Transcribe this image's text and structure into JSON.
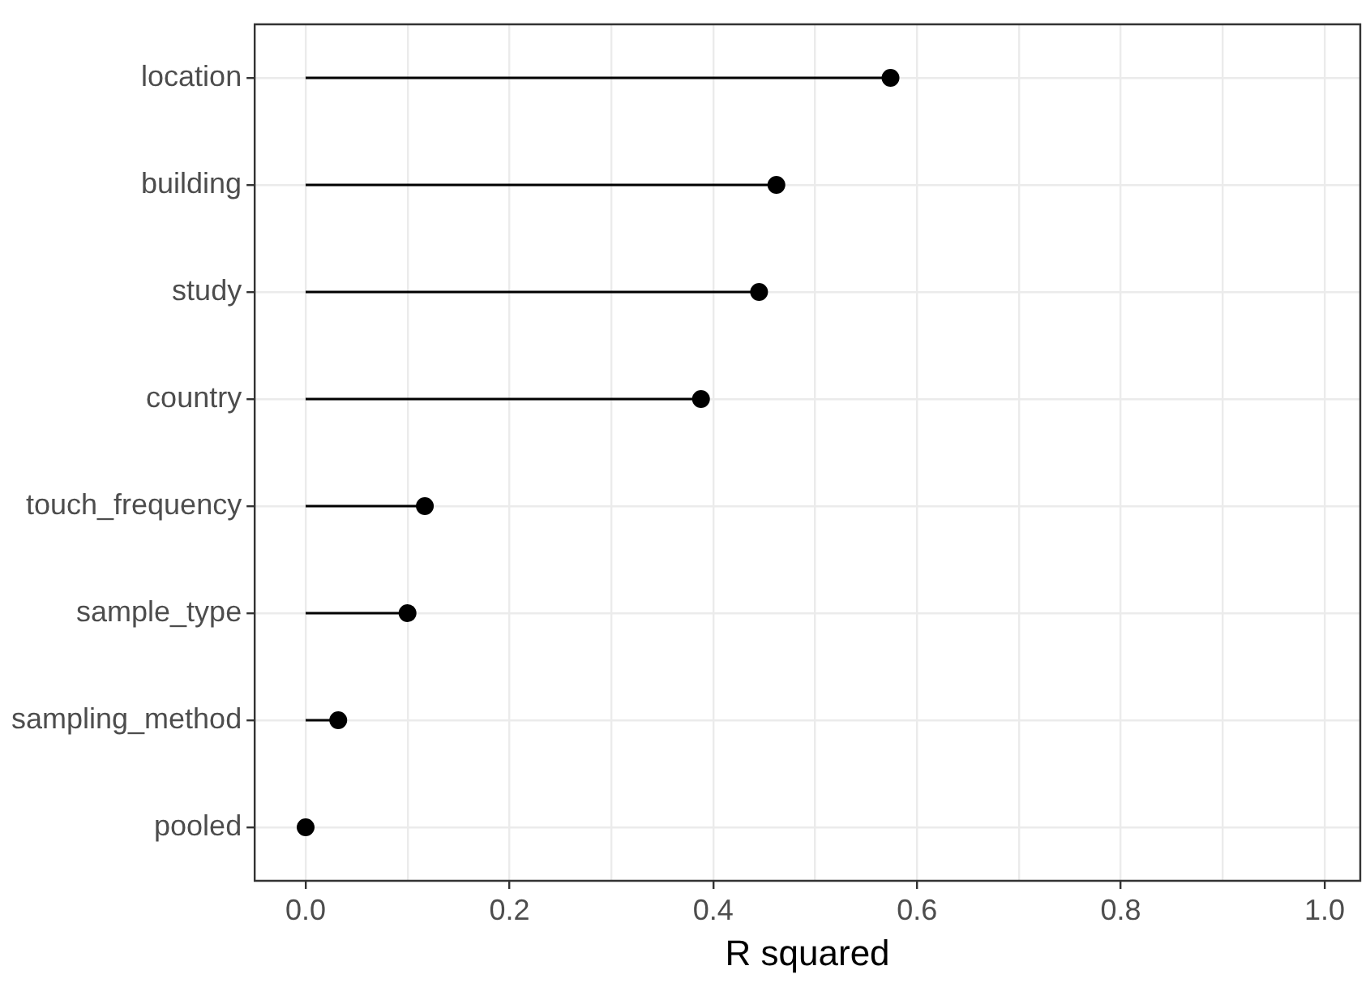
{
  "chart_data": {
    "type": "lollipop",
    "orientation": "horizontal",
    "xlabel": "R squared",
    "categories": [
      "location",
      "building",
      "study",
      "country",
      "touch_frequency",
      "sample_type",
      "sampling_method",
      "pooled"
    ],
    "values": [
      0.574,
      0.462,
      0.445,
      0.388,
      0.117,
      0.1,
      0.032,
      0
    ],
    "color": "#000000",
    "marker": "circle",
    "grid": true,
    "legend": false,
    "xlim": [
      -0.05,
      1.035
    ],
    "xticks": [
      {
        "value": 0,
        "label": "0.0"
      },
      {
        "value": 0.1,
        "label": null
      },
      {
        "value": 0.2,
        "label": "0.2"
      },
      {
        "value": 0.3,
        "label": null
      },
      {
        "value": 0.4,
        "label": "0.4"
      },
      {
        "value": 0.5,
        "label": null
      },
      {
        "value": 0.6,
        "label": "0.6"
      },
      {
        "value": 0.7,
        "label": null
      },
      {
        "value": 0.8,
        "label": "0.8"
      },
      {
        "value": 0.9,
        "label": null
      },
      {
        "value": 1,
        "label": "1.0"
      }
    ]
  }
}
